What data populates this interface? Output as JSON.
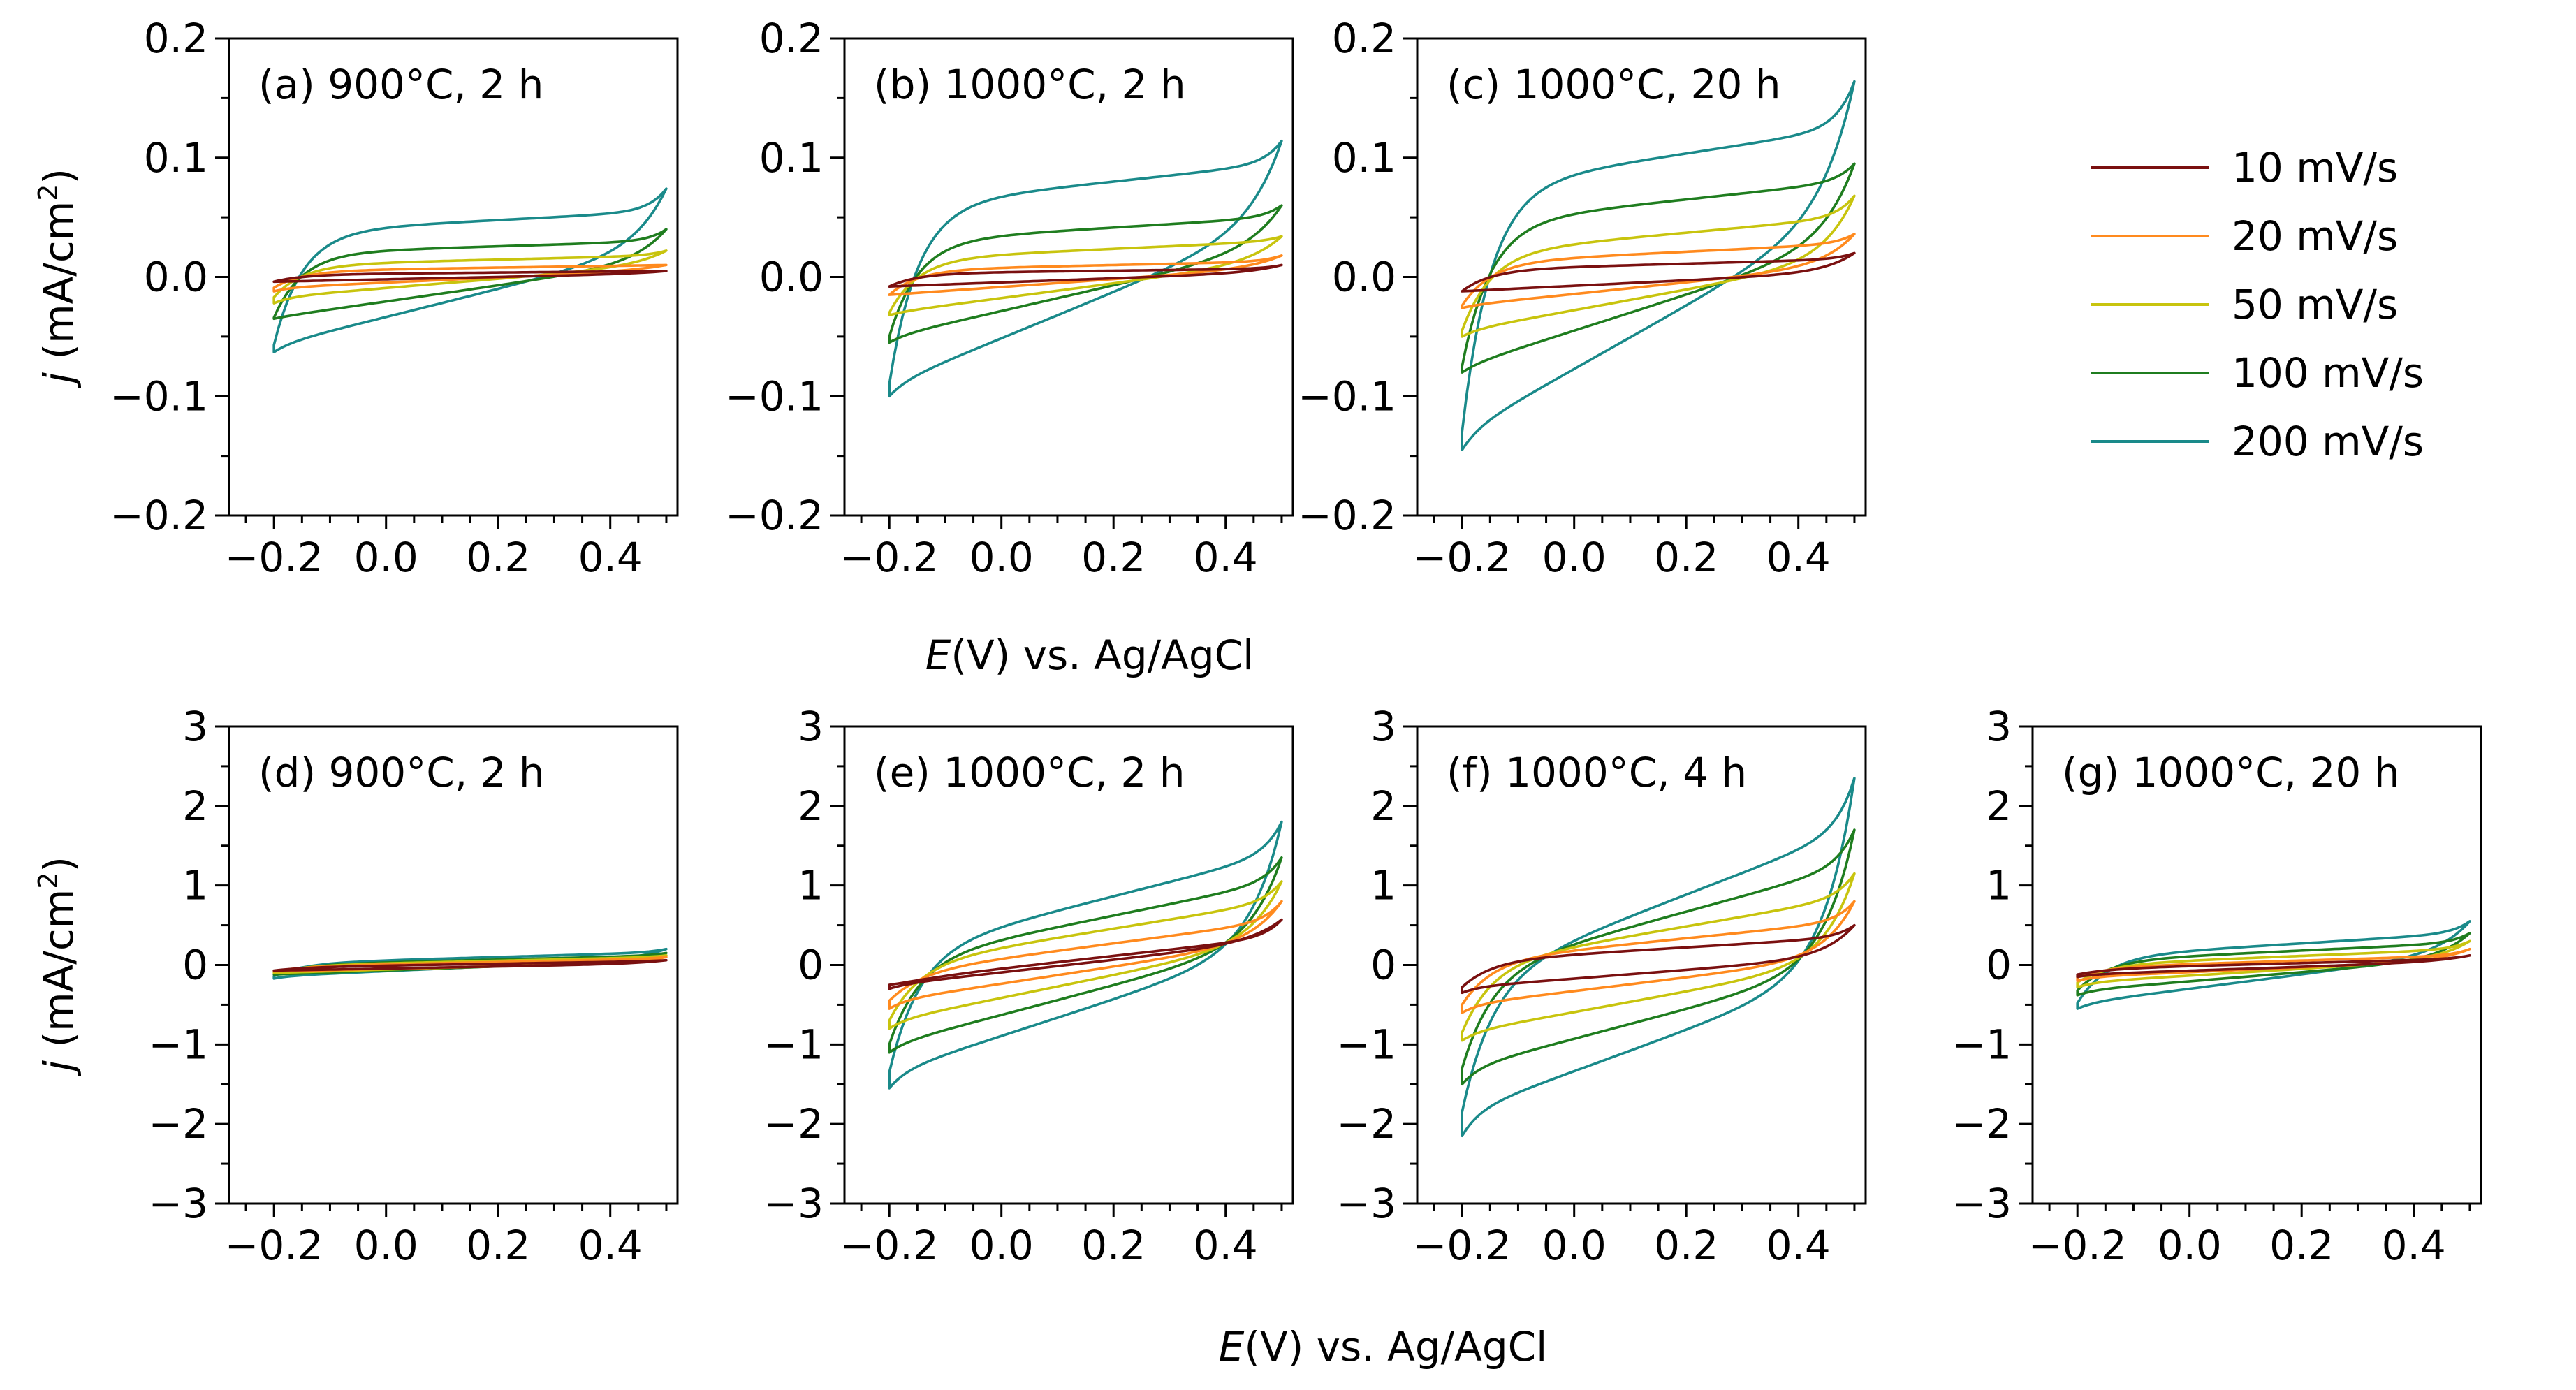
{
  "figure": {
    "xlabel_prefix": "E",
    "xlabel_rest": "(V) vs. Ag/AgCl",
    "ylabel_prefix": "j",
    "ylabel_unit": " (mA/cm",
    "ylabel_sup": "2",
    "ylabel_close": ")"
  },
  "legend": {
    "items": [
      {
        "label": "10 mV/s",
        "color": "#7a1010"
      },
      {
        "label": "20 mV/s",
        "color": "#ff8a1e"
      },
      {
        "label": "50 mV/s",
        "color": "#c8c40e"
      },
      {
        "label": "100 mV/s",
        "color": "#1f7d1f"
      },
      {
        "label": "200 mV/s",
        "color": "#1a8a8a"
      }
    ]
  },
  "chart_data": [
    {
      "id": "a",
      "type": "line",
      "title": "(a) 900°C, 2 h",
      "xlim": [
        -0.28,
        0.52
      ],
      "ylim": [
        -0.2,
        0.2
      ],
      "xticks": [
        -0.2,
        0.0,
        0.2,
        0.4
      ],
      "xticklabels": [
        "−0.2",
        "0.0",
        "0.2",
        "0.4"
      ],
      "yticks": [
        -0.2,
        -0.1,
        0.0,
        0.1,
        0.2
      ],
      "yticklabels": [
        "−0.2",
        "−0.1",
        "0.0",
        "0.1",
        "0.2"
      ],
      "yminor": 0.05,
      "series": [
        {
          "name": "10 mV/s",
          "cv": {
            "a0": 0.002,
            "a1": 0.005,
            "c0": -0.004,
            "c1": 0.003,
            "tip_up": 0.005,
            "tip_dn": -0.004
          }
        },
        {
          "name": "20 mV/s",
          "cv": {
            "a0": 0.005,
            "a1": 0.01,
            "c0": -0.009,
            "c1": 0.006,
            "tip_up": 0.01,
            "tip_dn": -0.012
          }
        },
        {
          "name": "50 mV/s",
          "cv": {
            "a0": 0.01,
            "a1": 0.018,
            "c0": -0.017,
            "c1": 0.01,
            "tip_up": 0.022,
            "tip_dn": -0.022
          }
        },
        {
          "name": "100 mV/s",
          "cv": {
            "a0": 0.02,
            "a1": 0.03,
            "c0": -0.034,
            "c1": 0.013,
            "tip_up": 0.04,
            "tip_dn": -0.035
          }
        },
        {
          "name": "200 mV/s",
          "cv": {
            "a0": 0.038,
            "a1": 0.055,
            "c0": -0.057,
            "c1": 0.025,
            "tip_up": 0.074,
            "tip_dn": -0.063
          }
        }
      ]
    },
    {
      "id": "b",
      "type": "line",
      "title": "(b) 1000°C, 2 h",
      "xlim": [
        -0.28,
        0.52
      ],
      "ylim": [
        -0.2,
        0.2
      ],
      "xticks": [
        -0.2,
        0.0,
        0.2,
        0.4
      ],
      "xticklabels": [
        "−0.2",
        "0.0",
        "0.2",
        "0.4"
      ],
      "yticks": [
        -0.2,
        -0.1,
        0.0,
        0.1,
        0.2
      ],
      "yticklabels": [
        "−0.2",
        "−0.1",
        "0.0",
        "0.1",
        "0.2"
      ],
      "yminor": 0.05,
      "series": [
        {
          "name": "10 mV/s",
          "cv": {
            "a0": 0.003,
            "a1": 0.007,
            "c0": -0.008,
            "c1": 0.004,
            "tip_up": 0.01,
            "tip_dn": -0.008
          }
        },
        {
          "name": "20 mV/s",
          "cv": {
            "a0": 0.006,
            "a1": 0.013,
            "c0": -0.015,
            "c1": 0.008,
            "tip_up": 0.018,
            "tip_dn": -0.015
          }
        },
        {
          "name": "50 mV/s",
          "cv": {
            "a0": 0.015,
            "a1": 0.03,
            "c0": -0.03,
            "c1": 0.013,
            "tip_up": 0.034,
            "tip_dn": -0.032
          }
        },
        {
          "name": "100 mV/s",
          "cv": {
            "a0": 0.03,
            "a1": 0.05,
            "c0": -0.05,
            "c1": 0.025,
            "tip_up": 0.06,
            "tip_dn": -0.055
          }
        },
        {
          "name": "200 mV/s",
          "cv": {
            "a0": 0.06,
            "a1": 0.095,
            "c0": -0.09,
            "c1": 0.045,
            "tip_up": 0.114,
            "tip_dn": -0.1
          }
        }
      ]
    },
    {
      "id": "c",
      "type": "line",
      "title": "(c) 1000°C, 20 h",
      "xlim": [
        -0.28,
        0.52
      ],
      "ylim": [
        -0.2,
        0.2
      ],
      "xticks": [
        -0.2,
        0.0,
        0.2,
        0.4
      ],
      "xticklabels": [
        "−0.2",
        "0.0",
        "0.2",
        "0.4"
      ],
      "yticks": [
        -0.2,
        -0.1,
        0.0,
        0.1,
        0.2
      ],
      "yticklabels": [
        "−0.2",
        "−0.1",
        "0.0",
        "0.1",
        "0.2"
      ],
      "yminor": 0.05,
      "series": [
        {
          "name": "10 mV/s",
          "cv": {
            "a0": 0.006,
            "a1": 0.015,
            "c0": -0.012,
            "c1": 0.004,
            "tip_up": 0.02,
            "tip_dn": -0.012
          }
        },
        {
          "name": "20 mV/s",
          "cv": {
            "a0": 0.012,
            "a1": 0.028,
            "c0": -0.024,
            "c1": 0.01,
            "tip_up": 0.036,
            "tip_dn": -0.026
          }
        },
        {
          "name": "50 mV/s",
          "cv": {
            "a0": 0.02,
            "a1": 0.05,
            "c0": -0.045,
            "c1": 0.015,
            "tip_up": 0.068,
            "tip_dn": -0.05
          }
        },
        {
          "name": "100 mV/s",
          "cv": {
            "a0": 0.045,
            "a1": 0.08,
            "c0": -0.075,
            "c1": 0.03,
            "tip_up": 0.095,
            "tip_dn": -0.08
          }
        },
        {
          "name": "200 mV/s",
          "cv": {
            "a0": 0.075,
            "a1": 0.125,
            "c0": -0.13,
            "c1": 0.055,
            "tip_up": 0.164,
            "tip_dn": -0.145
          }
        }
      ]
    },
    {
      "id": "d",
      "type": "line",
      "title": "(d) 900°C, 2 h",
      "xlim": [
        -0.28,
        0.52
      ],
      "ylim": [
        -3,
        3
      ],
      "xticks": [
        -0.2,
        0.0,
        0.2,
        0.4
      ],
      "xticklabels": [
        "−0.2",
        "0.0",
        "0.2",
        "0.4"
      ],
      "yticks": [
        -3,
        -2,
        -1,
        0,
        1,
        2,
        3
      ],
      "yticklabels": [
        "−3",
        "−2",
        "−1",
        "0",
        "1",
        "2",
        "3"
      ],
      "yminor": 0.5,
      "series": [
        {
          "name": "10 mV/s",
          "cv": {
            "a0": -0.03,
            "a1": 0.05,
            "c0": -0.07,
            "c1": 0.02,
            "tip_up": 0.06,
            "tip_dn": -0.07
          }
        },
        {
          "name": "20 mV/s",
          "cv": {
            "a0": -0.02,
            "a1": 0.08,
            "c0": -0.08,
            "c1": 0.03,
            "tip_up": 0.1,
            "tip_dn": -0.08
          }
        },
        {
          "name": "50 mV/s",
          "cv": {
            "a0": -0.01,
            "a1": 0.1,
            "c0": -0.1,
            "c1": 0.05,
            "tip_up": 0.12,
            "tip_dn": -0.1
          }
        },
        {
          "name": "100 mV/s",
          "cv": {
            "a0": 0.0,
            "a1": 0.12,
            "c0": -0.12,
            "c1": 0.06,
            "tip_up": 0.15,
            "tip_dn": -0.12
          }
        },
        {
          "name": "200 mV/s",
          "cv": {
            "a0": 0.02,
            "a1": 0.16,
            "c0": -0.14,
            "c1": 0.08,
            "tip_up": 0.2,
            "tip_dn": -0.17
          }
        }
      ]
    },
    {
      "id": "e",
      "type": "line",
      "title": "(e) 1000°C, 2 h",
      "xlim": [
        -0.28,
        0.52
      ],
      "ylim": [
        -3,
        3
      ],
      "xticks": [
        -0.2,
        0.0,
        0.2,
        0.4
      ],
      "xticklabels": [
        "−0.2",
        "0.0",
        "0.2",
        "0.4"
      ],
      "yticks": [
        -3,
        -2,
        -1,
        0,
        1,
        2,
        3
      ],
      "yticklabels": [
        "−3",
        "−2",
        "−1",
        "0",
        "1",
        "2",
        "3"
      ],
      "yminor": 0.5,
      "series": [
        {
          "name": "10 mV/s",
          "cv": {
            "a0": -0.2,
            "a1": 0.35,
            "c0": -0.25,
            "c1": 0.3,
            "tip_up": 0.57,
            "tip_dn": -0.3
          }
        },
        {
          "name": "20 mV/s",
          "cv": {
            "a0": -0.1,
            "a1": 0.55,
            "c0": -0.45,
            "c1": 0.3,
            "tip_up": 0.8,
            "tip_dn": -0.55
          }
        },
        {
          "name": "50 mV/s",
          "cv": {
            "a0": 0.0,
            "a1": 0.8,
            "c0": -0.7,
            "c1": 0.3,
            "tip_up": 1.05,
            "tip_dn": -0.8
          }
        },
        {
          "name": "100 mV/s",
          "cv": {
            "a0": 0.05,
            "a1": 1.05,
            "c0": -1.0,
            "c1": 0.3,
            "tip_up": 1.35,
            "tip_dn": -1.1
          }
        },
        {
          "name": "200 mV/s",
          "cv": {
            "a0": 0.15,
            "a1": 1.4,
            "c0": -1.35,
            "c1": 0.25,
            "tip_up": 1.8,
            "tip_dn": -1.55
          }
        }
      ]
    },
    {
      "id": "f",
      "type": "line",
      "title": "(f) 1000°C, 4 h",
      "xlim": [
        -0.28,
        0.52
      ],
      "ylim": [
        -3,
        3
      ],
      "xticks": [
        -0.2,
        0.0,
        0.2,
        0.4
      ],
      "xticklabels": [
        "−0.2",
        "0.0",
        "0.2",
        "0.4"
      ],
      "yticks": [
        -3,
        -2,
        -1,
        0,
        1,
        2,
        3
      ],
      "yticklabels": [
        "−3",
        "−2",
        "−1",
        "0",
        "1",
        "2",
        "3"
      ],
      "yminor": 0.5,
      "series": [
        {
          "name": "10 mV/s",
          "cv": {
            "a0": 0.05,
            "a1": 0.35,
            "c0": -0.28,
            "c1": 0.1,
            "tip_up": 0.5,
            "tip_dn": -0.35
          }
        },
        {
          "name": "20 mV/s",
          "cv": {
            "a0": 0.05,
            "a1": 0.55,
            "c0": -0.5,
            "c1": 0.1,
            "tip_up": 0.8,
            "tip_dn": -0.6
          }
        },
        {
          "name": "50 mV/s",
          "cv": {
            "a0": 0.0,
            "a1": 0.85,
            "c0": -0.85,
            "c1": 0.05,
            "tip_up": 1.15,
            "tip_dn": -0.95
          }
        },
        {
          "name": "100 mV/s",
          "cv": {
            "a0": -0.1,
            "a1": 1.25,
            "c0": -1.3,
            "c1": 0.0,
            "tip_up": 1.7,
            "tip_dn": -1.5
          }
        },
        {
          "name": "200 mV/s",
          "cv": {
            "a0": -0.2,
            "a1": 1.7,
            "c0": -1.85,
            "c1": -0.05,
            "tip_up": 2.35,
            "tip_dn": -2.15
          }
        }
      ]
    },
    {
      "id": "g",
      "type": "line",
      "title": "(g) 1000°C, 20 h",
      "xlim": [
        -0.28,
        0.52
      ],
      "ylim": [
        -3,
        3
      ],
      "xticks": [
        -0.2,
        0.0,
        0.2,
        0.4
      ],
      "xticklabels": [
        "−0.2",
        "0.0",
        "0.2",
        "0.4"
      ],
      "yticks": [
        -3,
        -2,
        -1,
        0,
        1,
        2,
        3
      ],
      "yticklabels": [
        "−3",
        "−2",
        "−1",
        "0",
        "1",
        "2",
        "3"
      ],
      "yminor": 0.5,
      "series": [
        {
          "name": "10 mV/s",
          "cv": {
            "a0": -0.05,
            "a1": 0.08,
            "c0": -0.12,
            "c1": 0.05,
            "tip_up": 0.12,
            "tip_dn": -0.15
          }
        },
        {
          "name": "20 mV/s",
          "cv": {
            "a0": -0.03,
            "a1": 0.12,
            "c0": -0.15,
            "c1": 0.06,
            "tip_up": 0.2,
            "tip_dn": -0.2
          }
        },
        {
          "name": "50 mV/s",
          "cv": {
            "a0": 0.0,
            "a1": 0.2,
            "c0": -0.22,
            "c1": 0.08,
            "tip_up": 0.3,
            "tip_dn": -0.28
          }
        },
        {
          "name": "100 mV/s",
          "cv": {
            "a0": 0.05,
            "a1": 0.28,
            "c0": -0.32,
            "c1": 0.08,
            "tip_up": 0.4,
            "tip_dn": -0.38
          }
        },
        {
          "name": "200 mV/s",
          "cv": {
            "a0": 0.1,
            "a1": 0.4,
            "c0": -0.48,
            "c1": 0.15,
            "tip_up": 0.55,
            "tip_dn": -0.55
          }
        }
      ]
    }
  ]
}
